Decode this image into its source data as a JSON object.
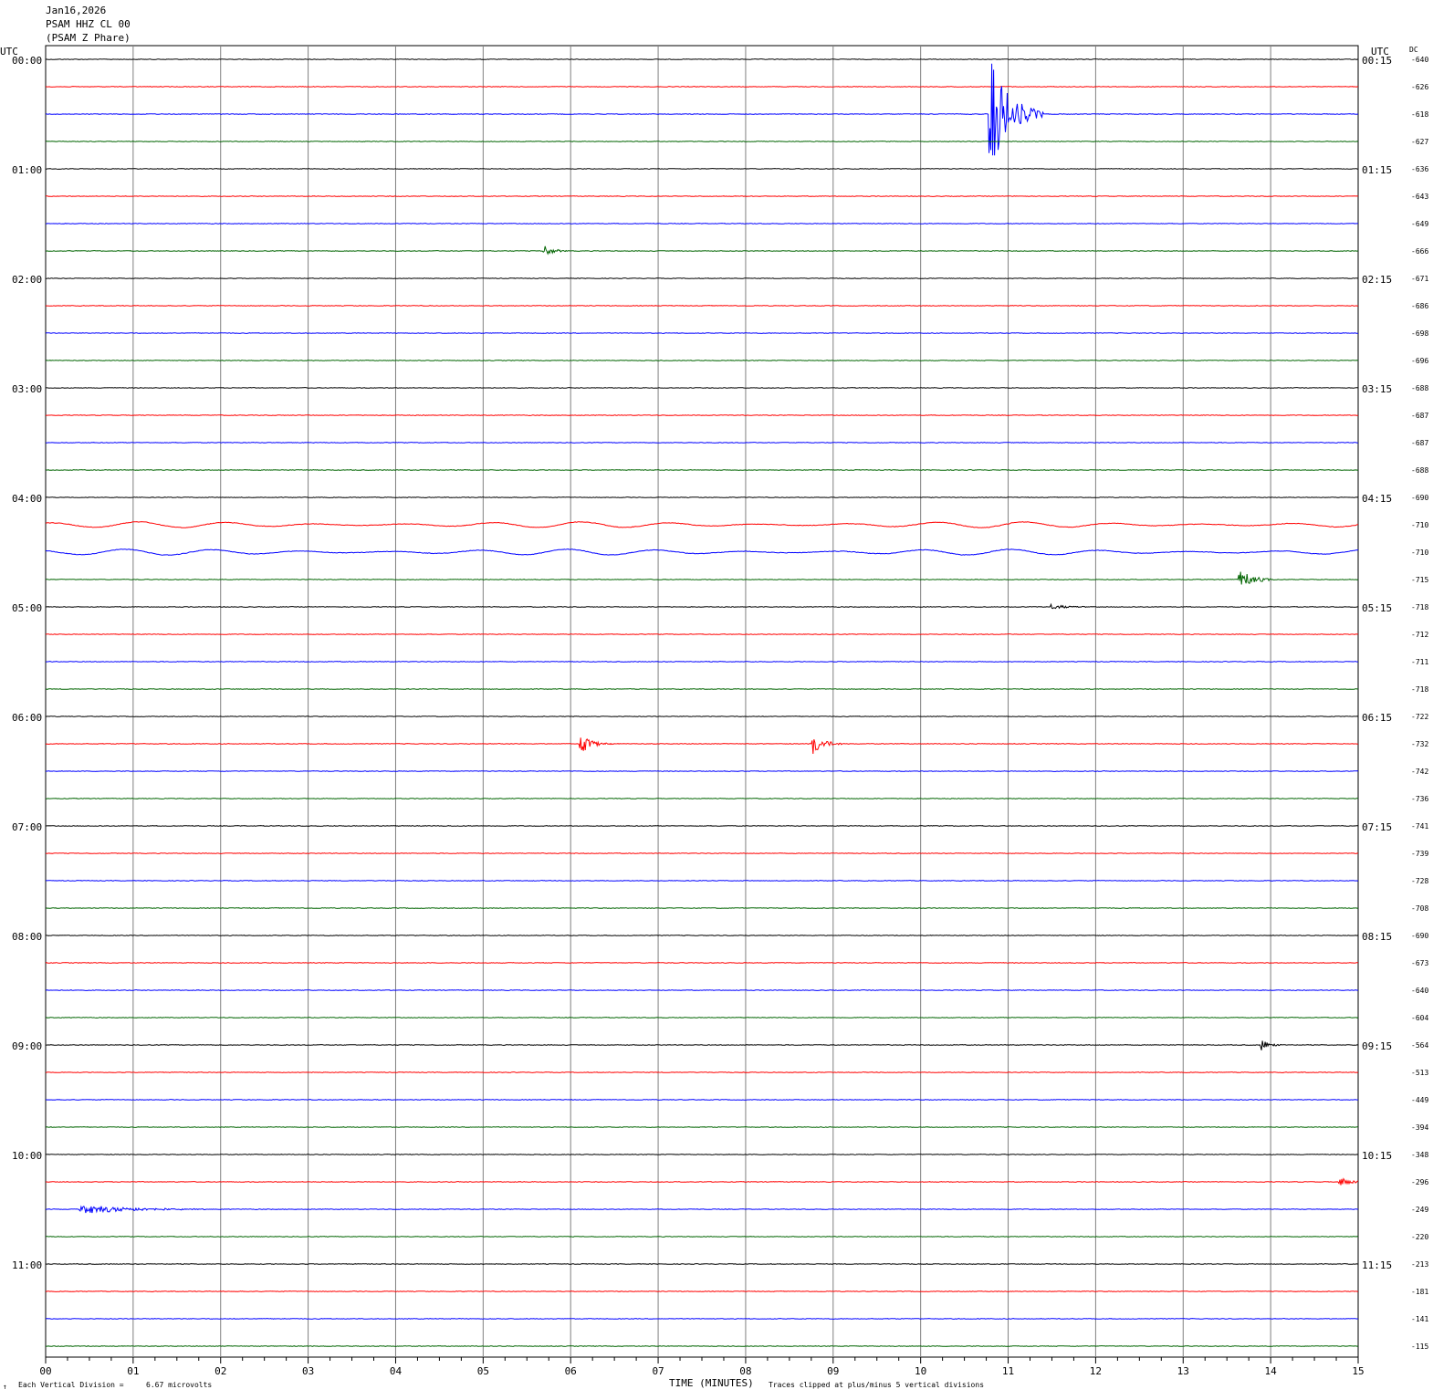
{
  "header": {
    "date": "Jan16,2026",
    "station": "PSAM HHZ CL 00",
    "name": "(PSAM Z Phare)"
  },
  "left_axis_title": "UTC",
  "right_axis_title": "UTC",
  "dc_title": "DC",
  "footer": {
    "division_label": "Each Vertical Division =",
    "division_value": "6.67 microvolts",
    "xlabel": "TIME (MINUTES)",
    "clip_note": "Traces clipped at plus/minus 5 vertical divisions",
    "corner_mark": "↑"
  },
  "chart_data": {
    "type": "line",
    "title": "PSAM HHZ CL 00",
    "xlabel": "TIME (MINUTES)",
    "xlim": [
      0,
      15
    ],
    "x_ticks": [
      "00",
      "01",
      "02",
      "03",
      "04",
      "05",
      "06",
      "07",
      "08",
      "09",
      "10",
      "11",
      "12",
      "13",
      "14",
      "15"
    ],
    "trace_colors": [
      "#000000",
      "#ff0000",
      "#0000ff",
      "#006400"
    ],
    "left_hour_labels": [
      "00:00",
      "01:00",
      "02:00",
      "03:00",
      "04:00",
      "05:00",
      "06:00",
      "07:00",
      "08:00",
      "09:00",
      "10:00",
      "11:00"
    ],
    "right_hour_labels": [
      "00:15",
      "01:15",
      "02:15",
      "03:15",
      "04:15",
      "05:15",
      "06:15",
      "07:15",
      "08:15",
      "09:15",
      "10:15",
      "11:15"
    ],
    "dc_offsets": [
      -640,
      -626,
      -618,
      -627,
      -636,
      -643,
      -649,
      -666,
      -671,
      -686,
      -698,
      -696,
      -688,
      -687,
      -687,
      -688,
      -690,
      -710,
      -710,
      -715,
      -718,
      -712,
      -711,
      -718,
      -722,
      -732,
      -742,
      -736,
      -741,
      -739,
      -728,
      -708,
      -690,
      -673,
      -640,
      -604,
      -564,
      -513,
      -449,
      -394,
      -348,
      -296,
      -249,
      -220,
      -213,
      -181,
      -141,
      -115
    ],
    "events": [
      {
        "trace": 2,
        "minute": 10.8,
        "amplitude": 12,
        "duration": 0.6
      },
      {
        "trace": 7,
        "minute": 5.7,
        "amplitude": 1.2,
        "duration": 0.3
      },
      {
        "trace": 19,
        "minute": 13.65,
        "amplitude": 2.2,
        "duration": 0.4
      },
      {
        "trace": 20,
        "minute": 11.5,
        "amplitude": 0.5,
        "duration": 0.6
      },
      {
        "trace": 25,
        "minute": 6.12,
        "amplitude": 2.0,
        "duration": 0.35
      },
      {
        "trace": 25,
        "minute": 8.78,
        "amplitude": 2.2,
        "duration": 0.35
      },
      {
        "trace": 36,
        "minute": 13.9,
        "amplitude": 1.3,
        "duration": 0.25
      },
      {
        "trace": 41,
        "minute": 14.8,
        "amplitude": 0.9,
        "duration": 0.5
      },
      {
        "trace": 42,
        "minute": 0.4,
        "amplitude": 1.0,
        "duration": 1.6
      }
    ]
  }
}
